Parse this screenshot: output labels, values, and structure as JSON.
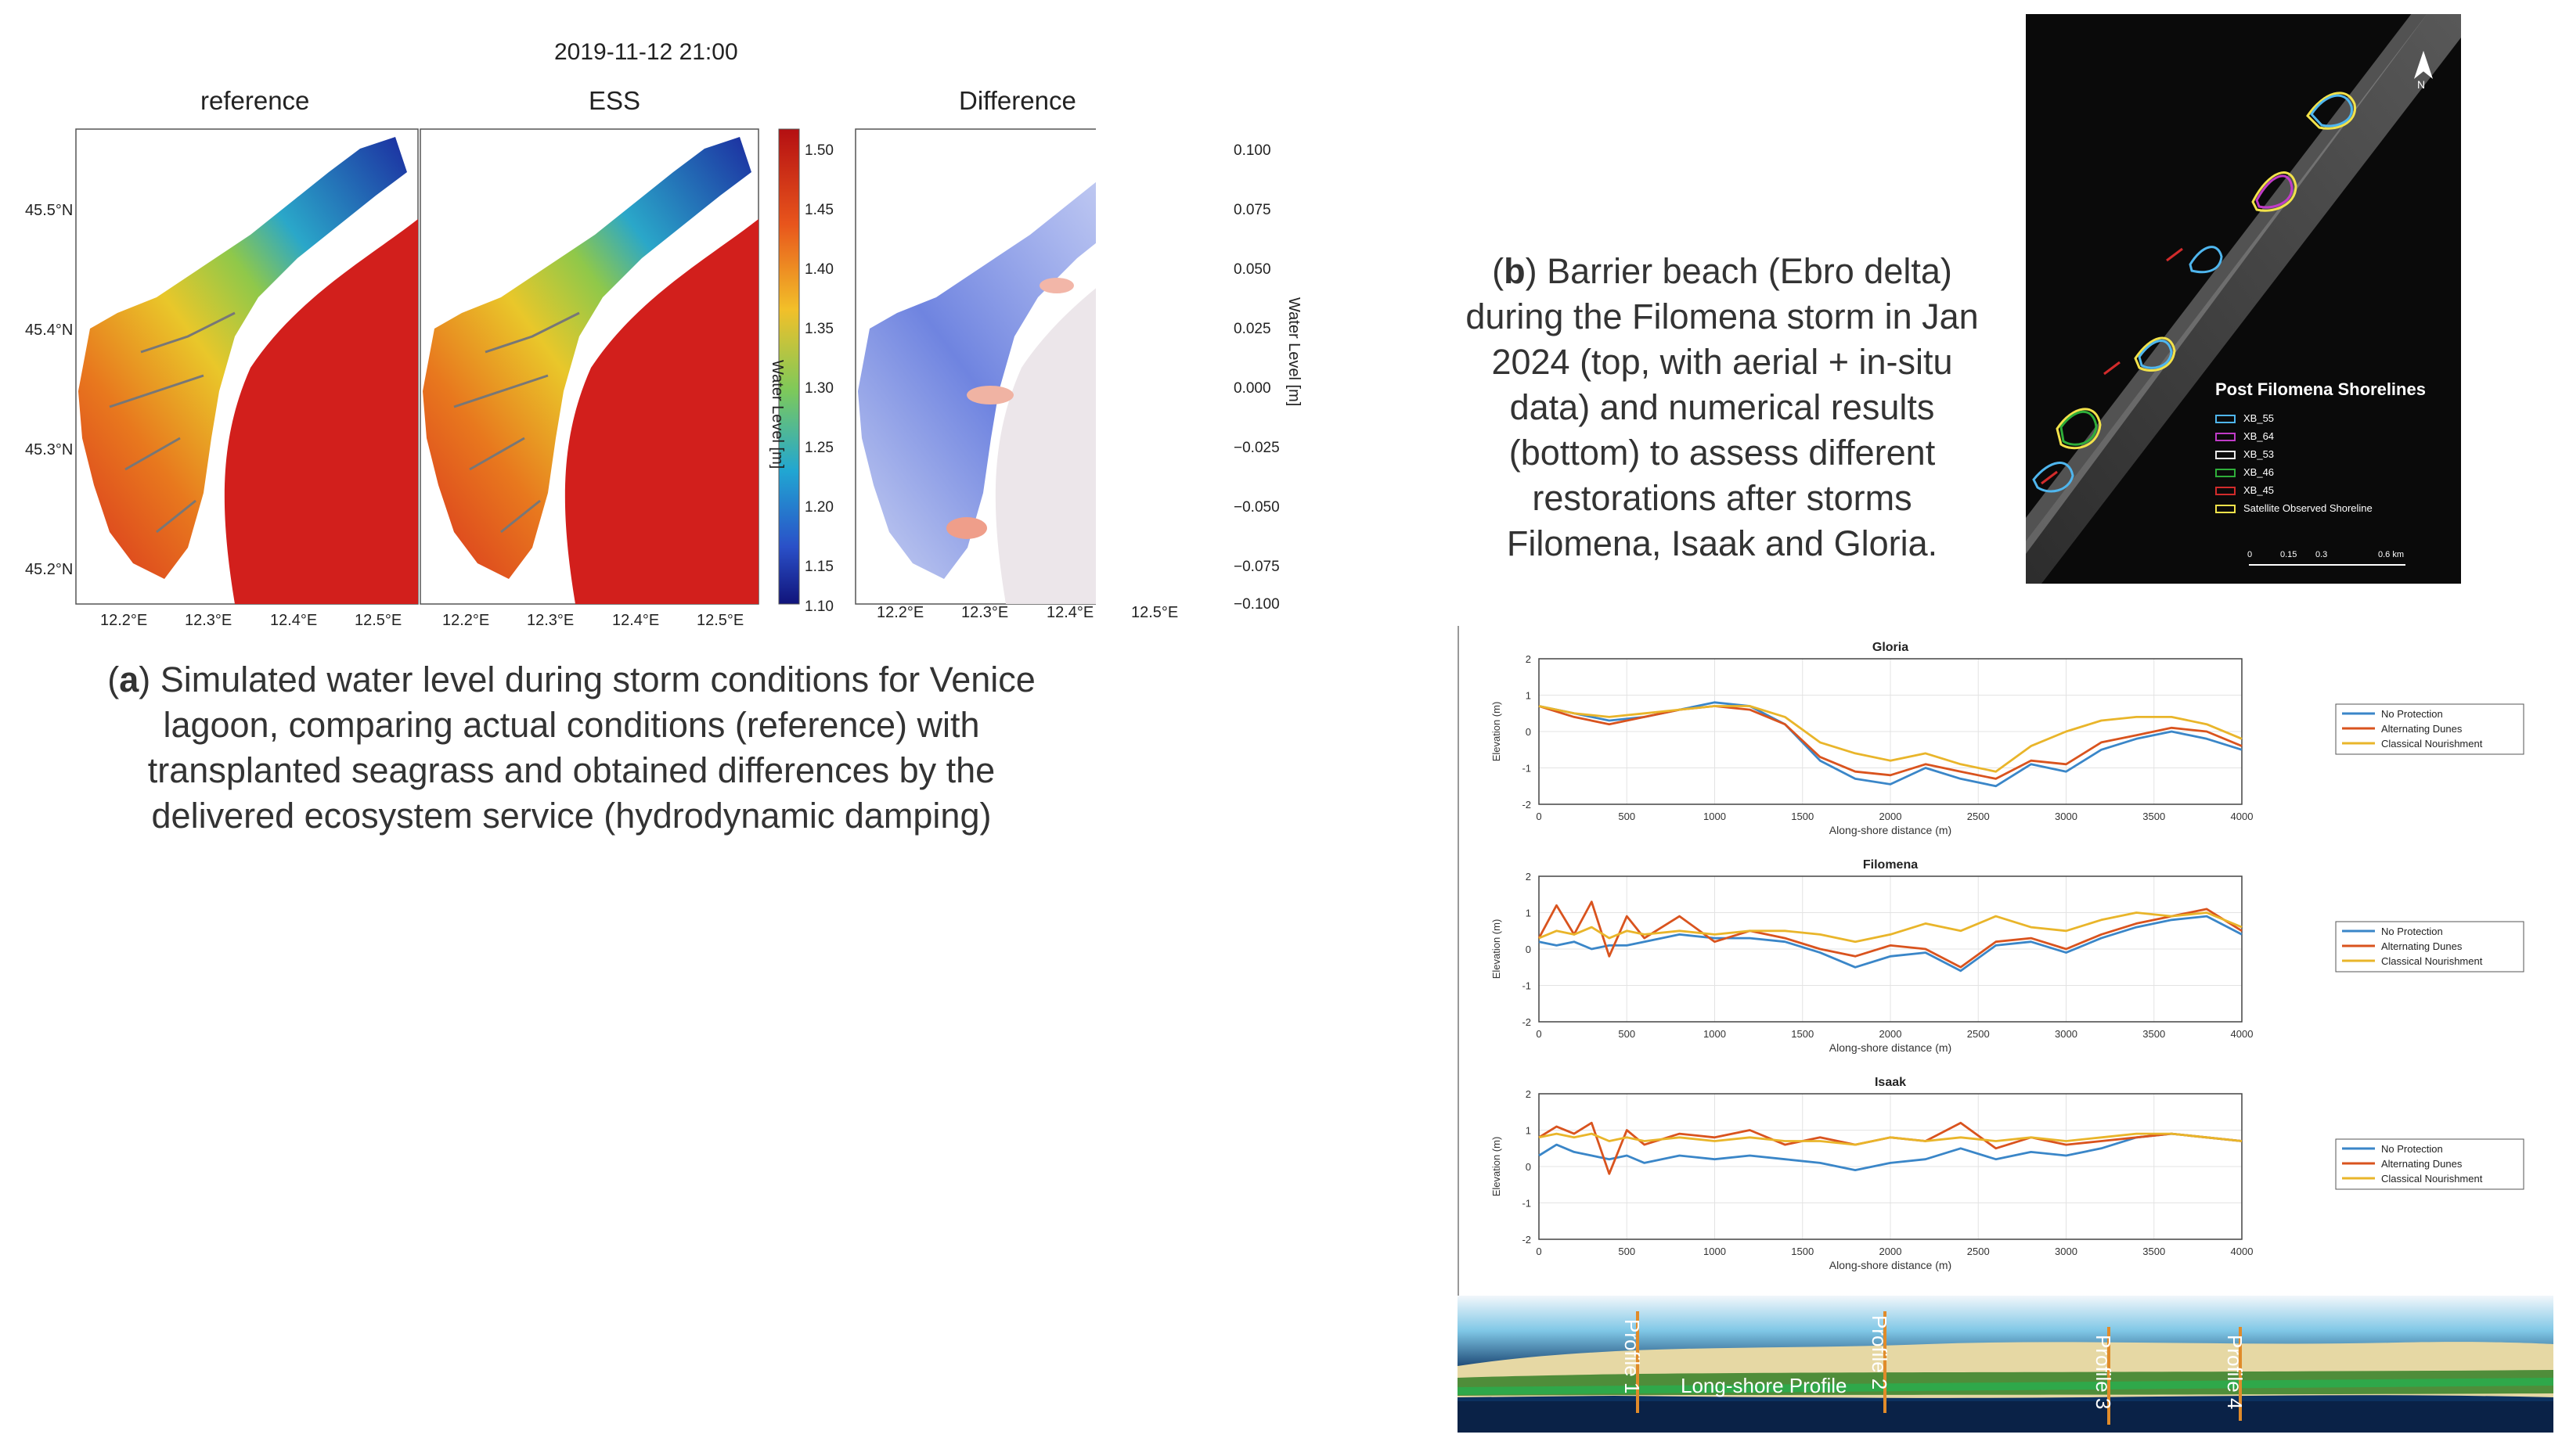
{
  "panel_a": {
    "timestamp": "2019-11-12 21:00",
    "maps": [
      {
        "title": "reference"
      },
      {
        "title": "ESS"
      },
      {
        "title": "Difference"
      }
    ],
    "lat_ticks": [
      "45.5°N",
      "45.4°N",
      "45.3°N",
      "45.2°N"
    ],
    "lon_ticks": [
      "12.2°E",
      "12.3°E",
      "12.4°E",
      "12.5°E"
    ],
    "colorbar_level": {
      "label": "Water Level [m]",
      "ticks": [
        "1.50",
        "1.45",
        "1.40",
        "1.35",
        "1.30",
        "1.25",
        "1.20",
        "1.15",
        "1.10"
      ]
    },
    "colorbar_diff": {
      "label": "Water Level [m]",
      "ticks": [
        "0.100",
        "0.075",
        "0.050",
        "0.025",
        "0.000",
        "−0.025",
        "−0.050",
        "−0.075",
        "−0.100"
      ]
    },
    "caption": {
      "letter": "a",
      "line1": ") Simulated water level during storm conditions for Venice",
      "line2": "lagoon, comparing actual conditions (reference) with",
      "line3": "transplanted seagrass and obtained differences by the",
      "line4": "delivered ecosystem service (hydrodynamic damping)"
    },
    "colors": {
      "high": "#d7191c",
      "mid": "#f5e02a",
      "low": "#1c2da0"
    }
  },
  "panel_b": {
    "caption": {
      "letter": "b",
      "line1": ") Barrier beach (Ebro delta)",
      "line2": "during the Filomena storm in Jan",
      "line3": "2024 (top, with aerial + in-situ",
      "line4": "data) and numerical results",
      "line5": "(bottom) to assess different",
      "line6": "restorations after storms",
      "line7": "Filomena, Isaak and Gloria."
    },
    "satellite": {
      "title": "Post Filomena Shorelines",
      "north": "N",
      "legend": [
        {
          "name": "XB_55",
          "color": "#4fb6ee"
        },
        {
          "name": "XB_64",
          "color": "#c03bc8"
        },
        {
          "name": "XB_53",
          "color": "#e8e8e8"
        },
        {
          "name": "XB_46",
          "color": "#2fae3a"
        },
        {
          "name": "XB_45",
          "color": "#d12b2b"
        },
        {
          "name": "Satellite Observed Shoreline",
          "color": "#f2e24a"
        }
      ],
      "scale": [
        "0",
        "0.15",
        "0.3",
        "0.6 km"
      ]
    },
    "profile_strip": {
      "labels": [
        "Profile 1",
        "Profile 2",
        "Profile 3",
        "Profile 4"
      ],
      "long_label": "Long-shore Profile"
    }
  },
  "chart_data": [
    {
      "type": "line",
      "title": "Gloria",
      "xlabel": "Along-shore distance (m)",
      "ylabel": "Elevation (m)",
      "xlim": [
        0,
        4000
      ],
      "ylim": [
        -2,
        2
      ],
      "x_ticks": [
        0,
        500,
        1000,
        1500,
        2000,
        2500,
        3000,
        3500,
        4000
      ],
      "y_ticks": [
        2,
        1,
        0,
        -1,
        -2
      ],
      "grid": true,
      "legend_position": "right",
      "x": [
        0,
        200,
        400,
        600,
        800,
        1000,
        1200,
        1400,
        1600,
        1800,
        2000,
        2200,
        2400,
        2600,
        2800,
        3000,
        3200,
        3400,
        3600,
        3800,
        4000
      ],
      "series": [
        {
          "name": "No Protection",
          "color": "#3a86c8",
          "values": [
            0.7,
            0.5,
            0.3,
            0.4,
            0.6,
            0.8,
            0.7,
            0.2,
            -0.8,
            -1.3,
            -1.45,
            -1.0,
            -1.3,
            -1.5,
            -0.9,
            -1.1,
            -0.5,
            -0.2,
            0.0,
            -0.2,
            -0.5
          ]
        },
        {
          "name": "Alternating Dunes",
          "color": "#d9531e",
          "values": [
            0.7,
            0.4,
            0.2,
            0.4,
            0.6,
            0.7,
            0.6,
            0.2,
            -0.7,
            -1.1,
            -1.2,
            -0.9,
            -1.1,
            -1.3,
            -0.8,
            -0.9,
            -0.3,
            -0.1,
            0.1,
            0.0,
            -0.4
          ]
        },
        {
          "name": "Classical Nourishment",
          "color": "#e9b52a",
          "values": [
            0.7,
            0.5,
            0.4,
            0.5,
            0.6,
            0.7,
            0.7,
            0.4,
            -0.3,
            -0.6,
            -0.8,
            -0.6,
            -0.9,
            -1.1,
            -0.4,
            0.0,
            0.3,
            0.4,
            0.4,
            0.2,
            -0.2
          ]
        }
      ]
    },
    {
      "type": "line",
      "title": "Filomena",
      "xlabel": "Along-shore distance (m)",
      "ylabel": "Elevation (m)",
      "xlim": [
        0,
        4000
      ],
      "ylim": [
        -2,
        2
      ],
      "x_ticks": [
        0,
        500,
        1000,
        1500,
        2000,
        2500,
        3000,
        3500,
        4000
      ],
      "y_ticks": [
        2,
        1,
        0,
        -1,
        -2
      ],
      "grid": true,
      "legend_position": "right",
      "x": [
        0,
        100,
        200,
        300,
        400,
        500,
        600,
        800,
        1000,
        1200,
        1400,
        1600,
        1800,
        2000,
        2200,
        2400,
        2600,
        2800,
        3000,
        3200,
        3400,
        3600,
        3800,
        4000
      ],
      "series": [
        {
          "name": "No Protection",
          "color": "#3a86c8",
          "values": [
            0.2,
            0.1,
            0.2,
            0.0,
            0.1,
            0.1,
            0.2,
            0.4,
            0.3,
            0.3,
            0.2,
            -0.1,
            -0.5,
            -0.2,
            -0.1,
            -0.6,
            0.1,
            0.2,
            -0.1,
            0.3,
            0.6,
            0.8,
            0.9,
            0.4
          ]
        },
        {
          "name": "Alternating Dunes",
          "color": "#d9531e",
          "values": [
            0.3,
            1.2,
            0.4,
            1.3,
            -0.2,
            0.9,
            0.3,
            0.9,
            0.2,
            0.5,
            0.3,
            0.0,
            -0.2,
            0.1,
            0.0,
            -0.5,
            0.2,
            0.3,
            0.0,
            0.4,
            0.7,
            0.9,
            1.1,
            0.5
          ]
        },
        {
          "name": "Classical Nourishment",
          "color": "#e9b52a",
          "values": [
            0.3,
            0.5,
            0.4,
            0.6,
            0.3,
            0.5,
            0.4,
            0.5,
            0.4,
            0.5,
            0.5,
            0.4,
            0.2,
            0.4,
            0.7,
            0.5,
            0.9,
            0.6,
            0.5,
            0.8,
            1.0,
            0.9,
            1.0,
            0.6
          ]
        }
      ]
    },
    {
      "type": "line",
      "title": "Isaak",
      "xlabel": "Along-shore distance (m)",
      "ylabel": "Elevation (m)",
      "xlim": [
        0,
        4000
      ],
      "ylim": [
        -2,
        2
      ],
      "x_ticks": [
        0,
        500,
        1000,
        1500,
        2000,
        2500,
        3000,
        3500,
        4000
      ],
      "y_ticks": [
        2,
        1,
        0,
        -1,
        -2
      ],
      "grid": true,
      "legend_position": "right",
      "x": [
        0,
        100,
        200,
        300,
        400,
        500,
        600,
        800,
        1000,
        1200,
        1400,
        1600,
        1800,
        2000,
        2200,
        2400,
        2600,
        2800,
        3000,
        3200,
        3400,
        3600,
        3800,
        4000
      ],
      "series": [
        {
          "name": "No Protection",
          "color": "#3a86c8",
          "values": [
            0.3,
            0.6,
            0.4,
            0.3,
            0.2,
            0.3,
            0.1,
            0.3,
            0.2,
            0.3,
            0.2,
            0.1,
            -0.1,
            0.1,
            0.2,
            0.5,
            0.2,
            0.4,
            0.3,
            0.5,
            0.8,
            0.9,
            0.8,
            0.7
          ]
        },
        {
          "name": "Alternating Dunes",
          "color": "#d9531e",
          "values": [
            0.8,
            1.1,
            0.9,
            1.2,
            -0.2,
            1.0,
            0.6,
            0.9,
            0.8,
            1.0,
            0.6,
            0.8,
            0.6,
            0.8,
            0.7,
            1.2,
            0.5,
            0.8,
            0.6,
            0.7,
            0.8,
            0.9,
            0.8,
            0.7
          ]
        },
        {
          "name": "Classical Nourishment",
          "color": "#e9b52a",
          "values": [
            0.8,
            0.9,
            0.8,
            0.9,
            0.7,
            0.8,
            0.7,
            0.8,
            0.7,
            0.8,
            0.7,
            0.7,
            0.6,
            0.8,
            0.7,
            0.8,
            0.7,
            0.8,
            0.7,
            0.8,
            0.9,
            0.9,
            0.8,
            0.7
          ]
        }
      ]
    }
  ]
}
